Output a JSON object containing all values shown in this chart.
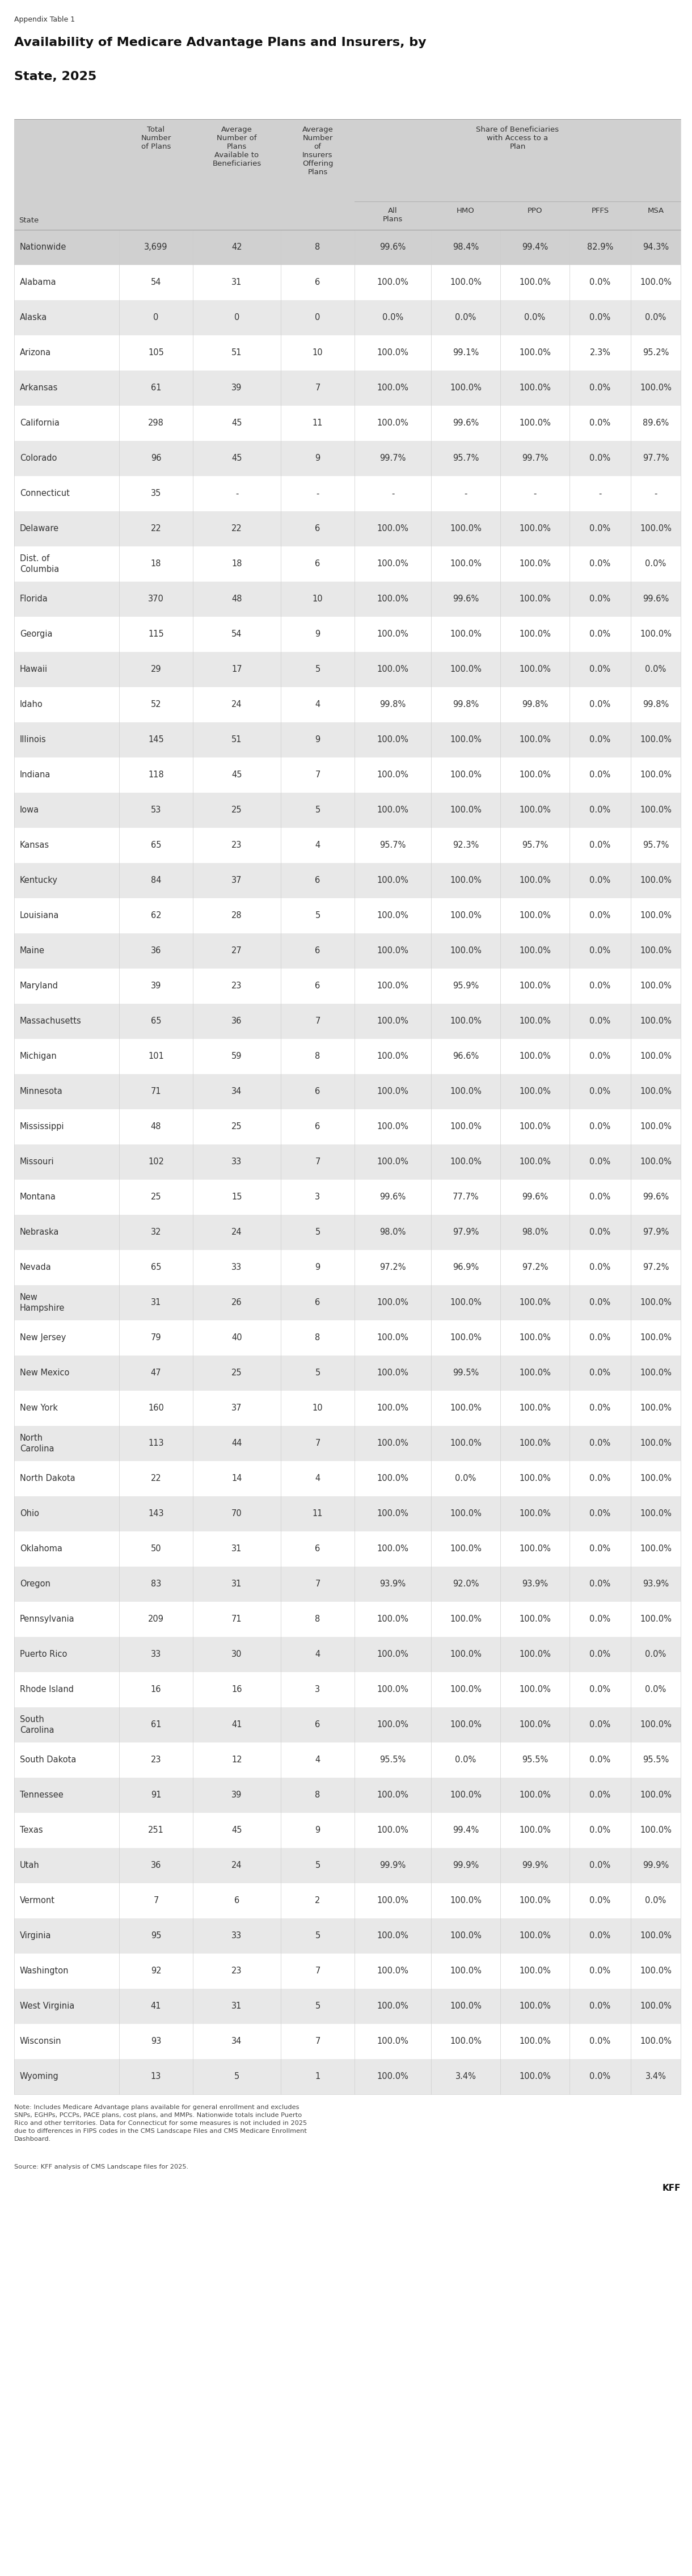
{
  "appendix_label": "Appendix Table 1",
  "title_line1": "Availability of Medicare Advantage Plans and Insurers, by",
  "title_line2": "State, 2025",
  "rows": [
    [
      "Nationwide",
      "3,699",
      "42",
      "8",
      "99.6%",
      "98.4%",
      "99.4%",
      "82.9%",
      "94.3%"
    ],
    [
      "Alabama",
      "54",
      "31",
      "6",
      "100.0%",
      "100.0%",
      "100.0%",
      "0.0%",
      "100.0%"
    ],
    [
      "Alaska",
      "0",
      "0",
      "0",
      "0.0%",
      "0.0%",
      "0.0%",
      "0.0%",
      "0.0%"
    ],
    [
      "Arizona",
      "105",
      "51",
      "10",
      "100.0%",
      "99.1%",
      "100.0%",
      "2.3%",
      "95.2%"
    ],
    [
      "Arkansas",
      "61",
      "39",
      "7",
      "100.0%",
      "100.0%",
      "100.0%",
      "0.0%",
      "100.0%"
    ],
    [
      "California",
      "298",
      "45",
      "11",
      "100.0%",
      "99.6%",
      "100.0%",
      "0.0%",
      "89.6%"
    ],
    [
      "Colorado",
      "96",
      "45",
      "9",
      "99.7%",
      "95.7%",
      "99.7%",
      "0.0%",
      "97.7%"
    ],
    [
      "Connecticut",
      "35",
      "-",
      "-",
      "-",
      "-",
      "-",
      "-",
      "-"
    ],
    [
      "Delaware",
      "22",
      "22",
      "6",
      "100.0%",
      "100.0%",
      "100.0%",
      "0.0%",
      "100.0%"
    ],
    [
      "Dist. of\nColumbia",
      "18",
      "18",
      "6",
      "100.0%",
      "100.0%",
      "100.0%",
      "0.0%",
      "0.0%"
    ],
    [
      "Florida",
      "370",
      "48",
      "10",
      "100.0%",
      "99.6%",
      "100.0%",
      "0.0%",
      "99.6%"
    ],
    [
      "Georgia",
      "115",
      "54",
      "9",
      "100.0%",
      "100.0%",
      "100.0%",
      "0.0%",
      "100.0%"
    ],
    [
      "Hawaii",
      "29",
      "17",
      "5",
      "100.0%",
      "100.0%",
      "100.0%",
      "0.0%",
      "0.0%"
    ],
    [
      "Idaho",
      "52",
      "24",
      "4",
      "99.8%",
      "99.8%",
      "99.8%",
      "0.0%",
      "99.8%"
    ],
    [
      "Illinois",
      "145",
      "51",
      "9",
      "100.0%",
      "100.0%",
      "100.0%",
      "0.0%",
      "100.0%"
    ],
    [
      "Indiana",
      "118",
      "45",
      "7",
      "100.0%",
      "100.0%",
      "100.0%",
      "0.0%",
      "100.0%"
    ],
    [
      "Iowa",
      "53",
      "25",
      "5",
      "100.0%",
      "100.0%",
      "100.0%",
      "0.0%",
      "100.0%"
    ],
    [
      "Kansas",
      "65",
      "23",
      "4",
      "95.7%",
      "92.3%",
      "95.7%",
      "0.0%",
      "95.7%"
    ],
    [
      "Kentucky",
      "84",
      "37",
      "6",
      "100.0%",
      "100.0%",
      "100.0%",
      "0.0%",
      "100.0%"
    ],
    [
      "Louisiana",
      "62",
      "28",
      "5",
      "100.0%",
      "100.0%",
      "100.0%",
      "0.0%",
      "100.0%"
    ],
    [
      "Maine",
      "36",
      "27",
      "6",
      "100.0%",
      "100.0%",
      "100.0%",
      "0.0%",
      "100.0%"
    ],
    [
      "Maryland",
      "39",
      "23",
      "6",
      "100.0%",
      "95.9%",
      "100.0%",
      "0.0%",
      "100.0%"
    ],
    [
      "Massachusetts",
      "65",
      "36",
      "7",
      "100.0%",
      "100.0%",
      "100.0%",
      "0.0%",
      "100.0%"
    ],
    [
      "Michigan",
      "101",
      "59",
      "8",
      "100.0%",
      "96.6%",
      "100.0%",
      "0.0%",
      "100.0%"
    ],
    [
      "Minnesota",
      "71",
      "34",
      "6",
      "100.0%",
      "100.0%",
      "100.0%",
      "0.0%",
      "100.0%"
    ],
    [
      "Mississippi",
      "48",
      "25",
      "6",
      "100.0%",
      "100.0%",
      "100.0%",
      "0.0%",
      "100.0%"
    ],
    [
      "Missouri",
      "102",
      "33",
      "7",
      "100.0%",
      "100.0%",
      "100.0%",
      "0.0%",
      "100.0%"
    ],
    [
      "Montana",
      "25",
      "15",
      "3",
      "99.6%",
      "77.7%",
      "99.6%",
      "0.0%",
      "99.6%"
    ],
    [
      "Nebraska",
      "32",
      "24",
      "5",
      "98.0%",
      "97.9%",
      "98.0%",
      "0.0%",
      "97.9%"
    ],
    [
      "Nevada",
      "65",
      "33",
      "9",
      "97.2%",
      "96.9%",
      "97.2%",
      "0.0%",
      "97.2%"
    ],
    [
      "New\nHampshire",
      "31",
      "26",
      "6",
      "100.0%",
      "100.0%",
      "100.0%",
      "0.0%",
      "100.0%"
    ],
    [
      "New Jersey",
      "79",
      "40",
      "8",
      "100.0%",
      "100.0%",
      "100.0%",
      "0.0%",
      "100.0%"
    ],
    [
      "New Mexico",
      "47",
      "25",
      "5",
      "100.0%",
      "99.5%",
      "100.0%",
      "0.0%",
      "100.0%"
    ],
    [
      "New York",
      "160",
      "37",
      "10",
      "100.0%",
      "100.0%",
      "100.0%",
      "0.0%",
      "100.0%"
    ],
    [
      "North\nCarolina",
      "113",
      "44",
      "7",
      "100.0%",
      "100.0%",
      "100.0%",
      "0.0%",
      "100.0%"
    ],
    [
      "North Dakota",
      "22",
      "14",
      "4",
      "100.0%",
      "0.0%",
      "100.0%",
      "0.0%",
      "100.0%"
    ],
    [
      "Ohio",
      "143",
      "70",
      "11",
      "100.0%",
      "100.0%",
      "100.0%",
      "0.0%",
      "100.0%"
    ],
    [
      "Oklahoma",
      "50",
      "31",
      "6",
      "100.0%",
      "100.0%",
      "100.0%",
      "0.0%",
      "100.0%"
    ],
    [
      "Oregon",
      "83",
      "31",
      "7",
      "93.9%",
      "92.0%",
      "93.9%",
      "0.0%",
      "93.9%"
    ],
    [
      "Pennsylvania",
      "209",
      "71",
      "8",
      "100.0%",
      "100.0%",
      "100.0%",
      "0.0%",
      "100.0%"
    ],
    [
      "Puerto Rico",
      "33",
      "30",
      "4",
      "100.0%",
      "100.0%",
      "100.0%",
      "0.0%",
      "0.0%"
    ],
    [
      "Rhode Island",
      "16",
      "16",
      "3",
      "100.0%",
      "100.0%",
      "100.0%",
      "0.0%",
      "0.0%"
    ],
    [
      "South\nCarolina",
      "61",
      "41",
      "6",
      "100.0%",
      "100.0%",
      "100.0%",
      "0.0%",
      "100.0%"
    ],
    [
      "South Dakota",
      "23",
      "12",
      "4",
      "95.5%",
      "0.0%",
      "95.5%",
      "0.0%",
      "95.5%"
    ],
    [
      "Tennessee",
      "91",
      "39",
      "8",
      "100.0%",
      "100.0%",
      "100.0%",
      "0.0%",
      "100.0%"
    ],
    [
      "Texas",
      "251",
      "45",
      "9",
      "100.0%",
      "99.4%",
      "100.0%",
      "0.0%",
      "100.0%"
    ],
    [
      "Utah",
      "36",
      "24",
      "5",
      "99.9%",
      "99.9%",
      "99.9%",
      "0.0%",
      "99.9%"
    ],
    [
      "Vermont",
      "7",
      "6",
      "2",
      "100.0%",
      "100.0%",
      "100.0%",
      "0.0%",
      "0.0%"
    ],
    [
      "Virginia",
      "95",
      "33",
      "5",
      "100.0%",
      "100.0%",
      "100.0%",
      "0.0%",
      "100.0%"
    ],
    [
      "Washington",
      "92",
      "23",
      "7",
      "100.0%",
      "100.0%",
      "100.0%",
      "0.0%",
      "100.0%"
    ],
    [
      "West Virginia",
      "41",
      "31",
      "5",
      "100.0%",
      "100.0%",
      "100.0%",
      "0.0%",
      "100.0%"
    ],
    [
      "Wisconsin",
      "93",
      "34",
      "7",
      "100.0%",
      "100.0%",
      "100.0%",
      "0.0%",
      "100.0%"
    ],
    [
      "Wyoming",
      "13",
      "5",
      "1",
      "100.0%",
      "3.4%",
      "100.0%",
      "0.0%",
      "3.4%"
    ]
  ],
  "note": "Note: Includes Medicare Advantage plans available for general enrollment and excludes SNPs, EGHPs, PCCPs, PACE plans, cost plans, and MMPs. Nationwide totals include Puerto Rico and other territories. Data for Connecticut for some measures is not included in 2025 due to differences in FIPS codes in the CMS Landscape Files and CMS Medicare Enrollment Dashboard.",
  "source": "Source: KFF analysis of CMS Landscape files for 2025.",
  "kff_label": "KFF",
  "header_bg": "#d0d0d0",
  "alt_row_bg": "#e8e8e8",
  "white_row_bg": "#ffffff",
  "nationwide_bg": "#d0d0d0",
  "text_color": "#333333",
  "title_color": "#111111"
}
